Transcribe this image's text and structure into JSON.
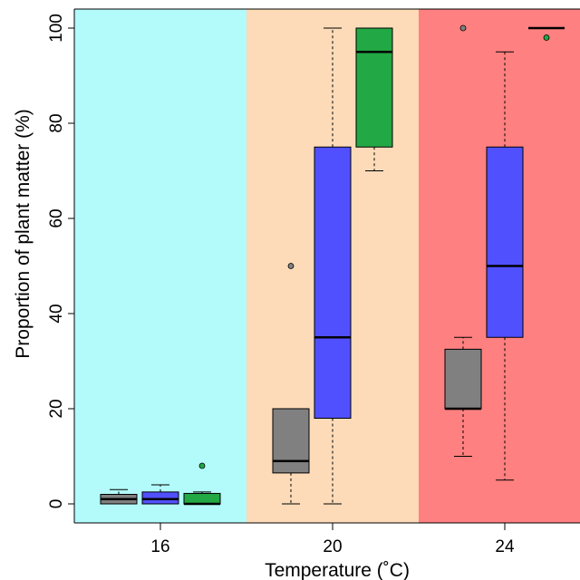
{
  "chart_data": {
    "type": "boxplot",
    "title": "",
    "xlabel": "Temperature (˚C)",
    "ylabel": "Proportion of plant matter (%)",
    "ylim": [
      -4,
      104
    ],
    "yticks": [
      0,
      20,
      40,
      60,
      80,
      100
    ],
    "grid": false,
    "categories": [
      "16",
      "20",
      "24"
    ],
    "category_backgrounds": [
      "#b3fafa",
      "#fddbb9",
      "#fe8080"
    ],
    "series_colors": [
      "#808080",
      "#5050ff",
      "#22a844"
    ],
    "groups": [
      {
        "category": "16",
        "boxes": [
          {
            "min": 0,
            "q1": 0,
            "median": 1,
            "q3": 2,
            "max": 3,
            "outliers": []
          },
          {
            "min": 0,
            "q1": 0,
            "median": 1,
            "q3": 2.5,
            "max": 4,
            "outliers": []
          },
          {
            "min": 0,
            "q1": 0,
            "median": 0,
            "q3": 2.2,
            "max": 2.5,
            "outliers": [
              8
            ]
          }
        ]
      },
      {
        "category": "20",
        "boxes": [
          {
            "min": 0,
            "q1": 6.5,
            "median": 9,
            "q3": 20,
            "max": 20,
            "outliers": [
              50
            ]
          },
          {
            "min": 0,
            "q1": 18,
            "median": 35,
            "q3": 75,
            "max": 100,
            "outliers": []
          },
          {
            "min": 70,
            "q1": 75,
            "median": 95,
            "q3": 100,
            "max": 100,
            "outliers": []
          }
        ]
      },
      {
        "category": "24",
        "boxes": [
          {
            "min": 10,
            "q1": 20,
            "median": 20,
            "q3": 32.5,
            "max": 35,
            "outliers": [
              100
            ]
          },
          {
            "min": 5,
            "q1": 35,
            "median": 50,
            "q3": 75,
            "max": 95,
            "outliers": []
          },
          {
            "min": 100,
            "q1": 100,
            "median": 100,
            "q3": 100,
            "max": 100,
            "outliers": [
              98
            ]
          }
        ]
      }
    ]
  }
}
